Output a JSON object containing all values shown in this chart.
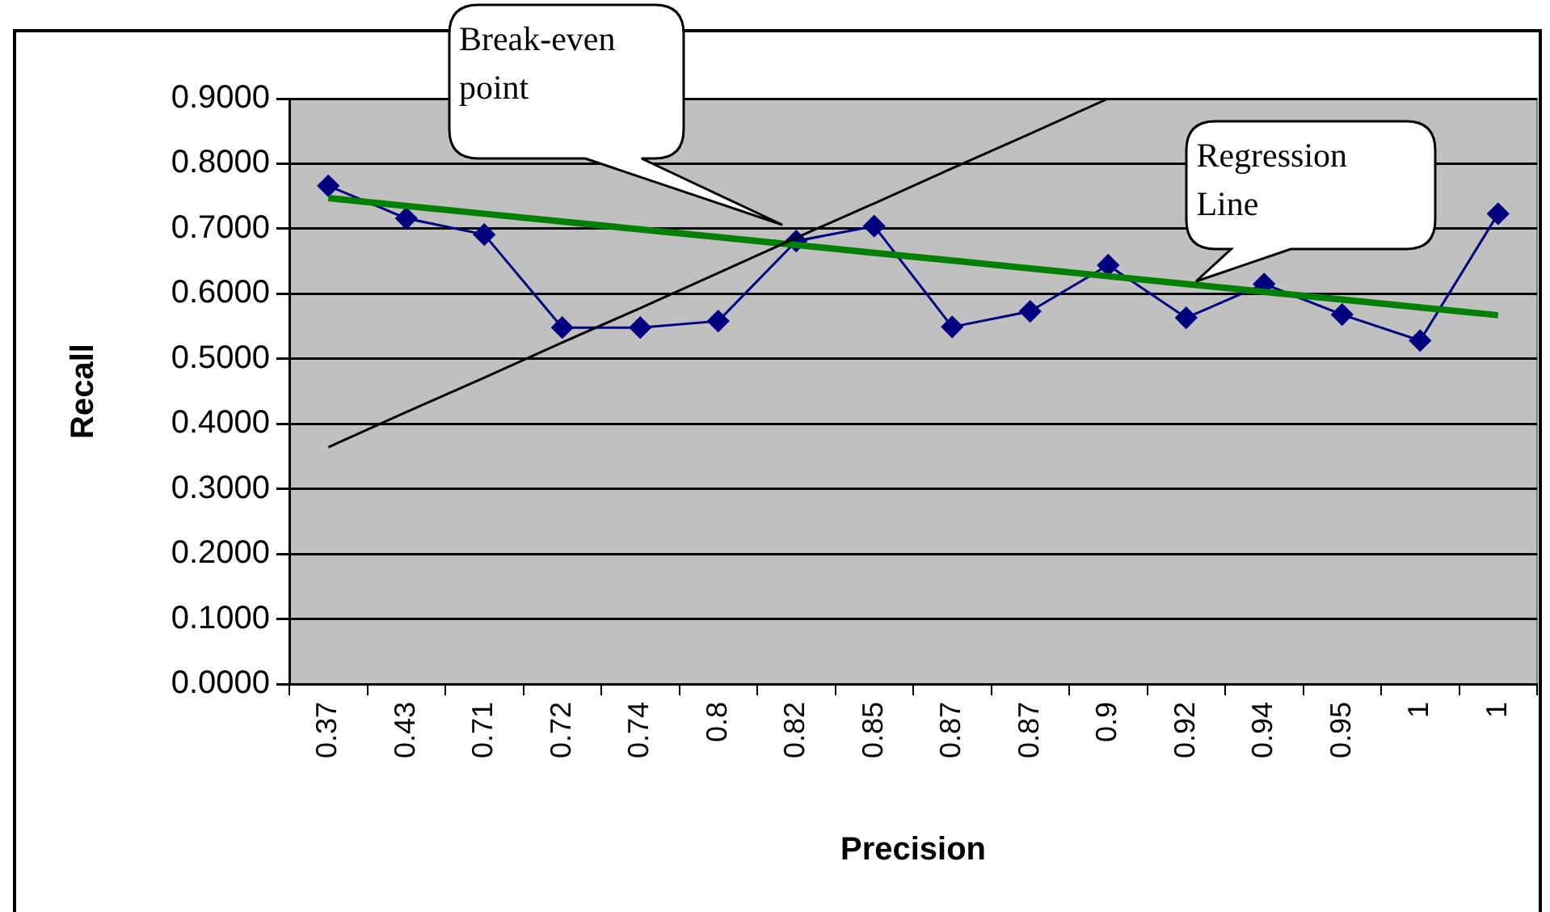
{
  "chart_data": {
    "type": "line",
    "xlabel": "Precision",
    "ylabel": "Recall",
    "categories": [
      "0.37",
      "0.43",
      "0.71",
      "0.72",
      "0.74",
      "0.8",
      "0.82",
      "0.85",
      "0.87",
      "0.87",
      "0.9",
      "0.92",
      "0.94",
      "0.95",
      "1",
      "1"
    ],
    "series": [
      {
        "color": "#000080",
        "marker": "diamond",
        "values": [
          0.766,
          0.716,
          0.691,
          0.548,
          0.548,
          0.558,
          0.681,
          0.704,
          0.549,
          0.573,
          0.644,
          0.563,
          0.615,
          0.568,
          0.528,
          0.723
        ]
      },
      {
        "color": "#008000",
        "marker": "none",
        "values": [
          0.747,
          0.735,
          0.723,
          0.711,
          0.699,
          0.687,
          0.675,
          0.663,
          0.651,
          0.639,
          0.627,
          0.615,
          0.603,
          0.591,
          0.579,
          0.567
        ]
      },
      {
        "color": "#000000",
        "marker": "none",
        "values": [
          0.364,
          0.418,
          0.471,
          0.525,
          0.578,
          0.632,
          0.686,
          0.739,
          0.793,
          0.846,
          0.9,
          null,
          null,
          null,
          null,
          null
        ]
      }
    ],
    "ylim": [
      0,
      0.9
    ],
    "yticks": [
      {
        "value": 0,
        "label": "0.0000"
      },
      {
        "value": 0.1,
        "label": "0.1000"
      },
      {
        "value": 0.2,
        "label": "0.2000"
      },
      {
        "value": 0.3,
        "label": "0.3000"
      },
      {
        "value": 0.4,
        "label": "0.4000"
      },
      {
        "value": 0.5,
        "label": "0.5000"
      },
      {
        "value": 0.6,
        "label": "0.6000"
      },
      {
        "value": 0.7,
        "label": "0.7000"
      },
      {
        "value": 0.8,
        "label": "0.8000"
      },
      {
        "value": 0.9,
        "label": "0.9000"
      }
    ],
    "grid": "y",
    "legend": false,
    "annotations": [
      "Break-even point",
      "Regression Line"
    ]
  }
}
